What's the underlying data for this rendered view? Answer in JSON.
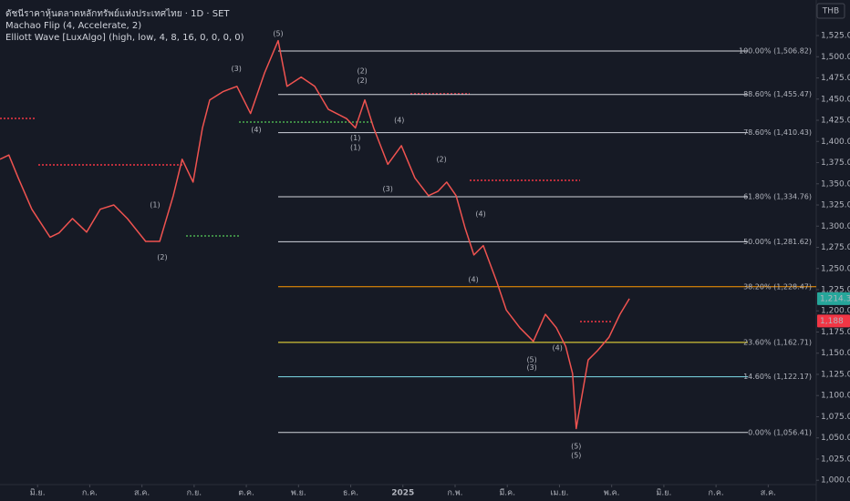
{
  "chart_data": {
    "type": "line",
    "legend_lines": [
      "ดัชนีราคาหุ้นตลาดหลักทรัพย์แห่งประเทศไทย · 1D · SET",
      "Machao Flip (4, Accelerate, 2)",
      "Elliott Wave [LuxAlgo] (high, low, 4, 8, 16, 0, 0, 0, 0)"
    ],
    "currency": "THB",
    "x": [
      -0.72,
      -0.55,
      -0.37,
      -0.11,
      0.24,
      0.41,
      0.67,
      0.94,
      1.2,
      1.46,
      1.72,
      2.07,
      2.34,
      2.6,
      2.77,
      2.98,
      3.16,
      3.3,
      3.56,
      3.82,
      4.08,
      4.35,
      4.61,
      4.78,
      5.05,
      5.31,
      5.57,
      5.92,
      6.09,
      6.27,
      6.44,
      6.71,
      6.97,
      7.23,
      7.49,
      7.67,
      7.84,
      8.02,
      8.19,
      8.36,
      8.54,
      8.8,
      8.98,
      9.24,
      9.5,
      9.73,
      9.94,
      10.12,
      10.25,
      10.32,
      10.4,
      10.55,
      10.73,
      10.95,
      11.16,
      11.34
    ],
    "series": [
      {
        "name": "SET",
        "color": "#ef5350",
        "values": [
          1379,
          1384,
          1357,
          1320,
          1287,
          1292,
          1309,
          1293,
          1320,
          1325,
          1309,
          1282,
          1282,
          1336,
          1379,
          1352,
          1416,
          1449,
          1459,
          1465,
          1433,
          1481,
          1519,
          1465,
          1476,
          1465,
          1438,
          1427,
          1416,
          1449,
          1416,
          1373,
          1395,
          1357,
          1336,
          1341,
          1352,
          1336,
          1298,
          1266,
          1277,
          1234,
          1201,
          1180,
          1164,
          1196,
          1180,
          1158,
          1126,
          1061,
          1089,
          1142,
          1153,
          1169,
          1196,
          1214.39
        ]
      }
    ],
    "xlim": [
      -0.72,
      14.92
    ],
    "xticks": [
      {
        "value": 0,
        "label": "มิ.ย."
      },
      {
        "value": 1,
        "label": "ก.ค."
      },
      {
        "value": 2,
        "label": "ส.ค."
      },
      {
        "value": 3,
        "label": "ก.ย."
      },
      {
        "value": 4,
        "label": "ต.ค."
      },
      {
        "value": 5,
        "label": "พ.ย."
      },
      {
        "value": 6,
        "label": "ธ.ค."
      },
      {
        "value": 7,
        "label": "2025"
      },
      {
        "value": 8,
        "label": "ก.พ."
      },
      {
        "value": 9,
        "label": "มี.ค."
      },
      {
        "value": 10,
        "label": "เม.ย."
      },
      {
        "value": 11,
        "label": "พ.ค."
      },
      {
        "value": 12,
        "label": "มิ.ย."
      },
      {
        "value": 13,
        "label": "ก.ค."
      },
      {
        "value": 14,
        "label": "ส.ค."
      }
    ],
    "ylim": [
      997,
      1567
    ],
    "yticks": [
      {
        "value": 1000,
        "label": "1,000.00"
      },
      {
        "value": 1025,
        "label": "1,025.00"
      },
      {
        "value": 1050,
        "label": "1,050.00"
      },
      {
        "value": 1075,
        "label": "1,075.00"
      },
      {
        "value": 1100,
        "label": "1,100.00"
      },
      {
        "value": 1125,
        "label": "1,125.00"
      },
      {
        "value": 1150,
        "label": "1,150.00"
      },
      {
        "value": 1175,
        "label": "1,175.00"
      },
      {
        "value": 1200,
        "label": "1,200.00"
      },
      {
        "value": 1225,
        "label": "1,225.00"
      },
      {
        "value": 1250,
        "label": "1,250.00"
      },
      {
        "value": 1275,
        "label": "1,275.00"
      },
      {
        "value": 1300,
        "label": "1,300.00"
      },
      {
        "value": 1325,
        "label": "1,325.00"
      },
      {
        "value": 1350,
        "label": "1,350.00"
      },
      {
        "value": 1375,
        "label": "1,375.00"
      },
      {
        "value": 1400,
        "label": "1,400.00"
      },
      {
        "value": 1425,
        "label": "1,425.00"
      },
      {
        "value": 1450,
        "label": "1,450.00"
      },
      {
        "value": 1475,
        "label": "1,475.00"
      },
      {
        "value": 1500,
        "label": "1,500.00"
      },
      {
        "value": 1525,
        "label": "1,525.00"
      }
    ],
    "fib_levels": [
      {
        "label": "100.00% (1,506.82)",
        "value": 1506.82,
        "color": "#d1d4dc"
      },
      {
        "label": "88.60% (1,455.47)",
        "value": 1455.47,
        "color": "#d1d4dc"
      },
      {
        "label": "78.60% (1,410.43)",
        "value": 1410.43,
        "color": "#d1d4dc"
      },
      {
        "label": "61.80% (1,334.76)",
        "value": 1334.76,
        "color": "#d1d4dc"
      },
      {
        "label": "50.00% (1,281.62)",
        "value": 1281.62,
        "color": "#d1d4dc"
      },
      {
        "label": "38.20% (1,228.47)",
        "value": 1228.47,
        "color": "#ff9800"
      },
      {
        "label": "23.60% (1,162.71)",
        "value": 1162.71,
        "color": "#ffeb3b"
      },
      {
        "label": "14.60% (1,122.17)",
        "value": 1122.17,
        "color": "#80deea"
      },
      {
        "label": "0.00% (1,056.41)",
        "value": 1056.41,
        "color": "#d1d4dc"
      }
    ],
    "price_tags": [
      {
        "value": 1214.39,
        "label": "1,214.39",
        "color": "#26a69a"
      },
      {
        "value": 1188,
        "label": "1,188",
        "color": "#f23645"
      }
    ],
    "annotations": [
      {
        "text": "(5)",
        "x": 4.61,
        "y": 1527,
        "color": "#ef5350"
      },
      {
        "text": "(3)",
        "x": 3.81,
        "y": 1486,
        "color": "#ef5350"
      },
      {
        "text": "(4)",
        "x": 4.19,
        "y": 1414,
        "color": "#ef5350"
      },
      {
        "text": "(2)",
        "x": 6.22,
        "y": 1483,
        "color": "#5c7cfa"
      },
      {
        "text": "(2)",
        "x": 6.22,
        "y": 1472,
        "color": "#ef5350"
      },
      {
        "text": "(1)",
        "x": 6.09,
        "y": 1404,
        "color": "#ef5350"
      },
      {
        "text": "(1)",
        "x": 6.09,
        "y": 1393,
        "color": "#5c7cfa"
      },
      {
        "text": "(4)",
        "x": 6.93,
        "y": 1425,
        "color": "#ef5350"
      },
      {
        "text": "(3)",
        "x": 6.71,
        "y": 1344,
        "color": "#ef5350"
      },
      {
        "text": "(2)",
        "x": 7.74,
        "y": 1379,
        "color": "#ef5350"
      },
      {
        "text": "(4)",
        "x": 8.49,
        "y": 1314,
        "color": "#ef5350"
      },
      {
        "text": "(4)",
        "x": 8.35,
        "y": 1237,
        "color": "#ef5350"
      },
      {
        "text": "(5)",
        "x": 9.47,
        "y": 1142,
        "color": "#ef5350"
      },
      {
        "text": "(3)",
        "x": 9.47,
        "y": 1133,
        "color": "#5c7cfa"
      },
      {
        "text": "(4)",
        "x": 9.96,
        "y": 1156,
        "color": "#ef5350"
      },
      {
        "text": "(5)",
        "x": 10.32,
        "y": 1040,
        "color": "#ef5350"
      },
      {
        "text": "(5)",
        "x": 10.32,
        "y": 1029,
        "color": "#5c7cfa"
      },
      {
        "text": "(1)",
        "x": 2.25,
        "y": 1325,
        "color": "#ef5350"
      },
      {
        "text": "(2)",
        "x": 2.39,
        "y": 1263,
        "color": "#ef5350"
      }
    ],
    "background": "#161a25"
  }
}
